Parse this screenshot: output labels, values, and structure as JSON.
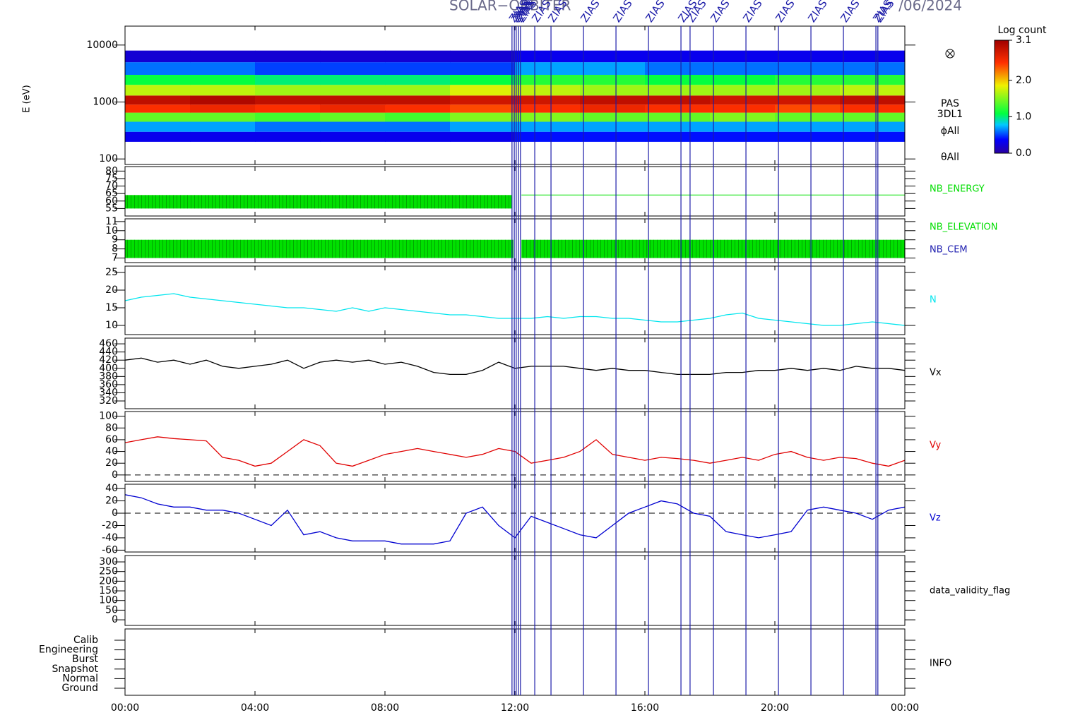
{
  "title": "SOLAR−ORBITER",
  "date": "/06/2024",
  "events": {
    "label": "ZIAS",
    "color": "#1c1ca8",
    "x": [
      11.91,
      11.98,
      12.04,
      12.11,
      12.17,
      12.61,
      13.11,
      14.11,
      15.11,
      16.11,
      17.11,
      17.39,
      18.11,
      19.11,
      20.11,
      21.11,
      22.11,
      23.11,
      23.17
    ]
  },
  "chart_data": [
    {
      "type": "heatmap",
      "y_label": "E (eV)",
      "log_y": true,
      "ylim": [
        80,
        21500
      ],
      "yticks": [
        100,
        1000,
        10000
      ],
      "labels": [
        "PAS",
        "3DL1",
        "ϕAll",
        "θAll"
      ],
      "x_edges": [
        0,
        2,
        4,
        6,
        8,
        10,
        12,
        14,
        16,
        18,
        20,
        22,
        24
      ],
      "y_edges": [
        200,
        300,
        450,
        650,
        900,
        1300,
        2000,
        3000,
        5000,
        8000
      ],
      "z": [
        [
          0.3,
          0.3,
          0.3,
          0.3,
          0.3,
          0.3,
          0.4,
          0.4,
          0.4,
          0.4,
          0.4,
          0.4
        ],
        [
          0.7,
          0.7,
          0.6,
          0.6,
          0.6,
          0.7,
          0.7,
          0.7,
          0.7,
          0.7,
          0.7,
          0.7
        ],
        [
          1.4,
          1.4,
          1.3,
          1.4,
          1.3,
          1.5,
          1.5,
          1.4,
          1.4,
          1.5,
          1.4,
          1.4
        ],
        [
          2.5,
          2.6,
          2.5,
          2.6,
          2.5,
          2.4,
          2.5,
          2.6,
          2.5,
          2.5,
          2.4,
          2.5
        ],
        [
          2.9,
          3.0,
          2.9,
          2.9,
          2.9,
          2.8,
          2.8,
          2.9,
          2.9,
          2.8,
          2.8,
          2.9
        ],
        [
          1.7,
          1.7,
          1.6,
          1.6,
          1.6,
          1.8,
          1.7,
          1.6,
          1.6,
          1.6,
          1.6,
          1.7
        ],
        [
          1.1,
          1.1,
          1.0,
          1.0,
          1.0,
          1.1,
          1.2,
          1.2,
          1.1,
          1.1,
          1.2,
          1.2
        ],
        [
          0.6,
          0.6,
          0.5,
          0.5,
          0.5,
          0.5,
          0.7,
          0.7,
          0.6,
          0.6,
          0.6,
          0.6
        ],
        [
          0.2,
          0.2,
          0.2,
          0.2,
          0.2,
          0.2,
          0.3,
          0.3,
          0.3,
          0.3,
          0.3,
          0.3
        ]
      ],
      "colorbar": {
        "title": "Log count",
        "lim": [
          0,
          3.1
        ],
        "ticks": [
          {
            "value": 0,
            "label": "0.0"
          },
          {
            "value": 1,
            "label": "1.0"
          },
          {
            "value": 2,
            "label": "2.0"
          },
          3.1
        ]
      }
    },
    {
      "type": "band",
      "ylim": [
        50,
        83
      ],
      "yticks": [
        55,
        60,
        65,
        70,
        75,
        80
      ],
      "labels": [
        {
          "text": "NB_ENERGY",
          "color": "#00dd00"
        }
      ],
      "color": "#00e000",
      "bands": [
        {
          "x": [
            0,
            11.9
          ],
          "y": [
            55,
            64
          ]
        }
      ],
      "levels": [
        {
          "x": [
            12.2,
            24
          ],
          "y": 64
        }
      ]
    },
    {
      "type": "band",
      "ylim": [
        6.5,
        11.3
      ],
      "yticks": [
        7,
        8,
        9,
        10,
        11
      ],
      "labels": [
        {
          "text": "NB_ELEVATION",
          "color": "#00dd00"
        },
        {
          "text": "NB_CEM",
          "color": "#2020b0"
        }
      ],
      "color": "#00e000",
      "bands": [
        {
          "x": [
            0,
            11.95
          ],
          "y": [
            7,
            9
          ]
        },
        {
          "x": [
            12.2,
            24
          ],
          "y": [
            7,
            9
          ]
        }
      ],
      "levels": []
    },
    {
      "type": "line",
      "ylim": [
        7.4,
        26.8
      ],
      "yticks": [
        10,
        15,
        20,
        25
      ],
      "x": [
        0,
        0.5,
        1,
        1.5,
        2,
        2.5,
        3,
        3.5,
        4,
        4.5,
        5,
        5.5,
        6,
        6.5,
        7,
        7.5,
        8,
        8.5,
        9,
        9.5,
        10,
        10.5,
        11,
        11.5,
        12,
        12.5,
        13,
        13.5,
        14,
        14.5,
        15,
        15.5,
        16,
        16.5,
        17,
        17.5,
        18,
        18.5,
        19,
        19.5,
        20,
        20.5,
        21,
        21.5,
        22,
        22.5,
        23,
        23.5,
        24
      ],
      "series": [
        {
          "name": "N",
          "color": "#00e5ee",
          "values": [
            17,
            18,
            18.5,
            19,
            18,
            17.5,
            17,
            16.5,
            16,
            15.5,
            15,
            15,
            14.5,
            14,
            15,
            14,
            15,
            14.5,
            14,
            13.5,
            13,
            13,
            12.5,
            12,
            12,
            12,
            12.5,
            12,
            12.5,
            12.5,
            12,
            12,
            11.5,
            11,
            11,
            11.5,
            12,
            13,
            13.5,
            12,
            11.5,
            11,
            10.5,
            10,
            10,
            10.5,
            11,
            10.5,
            10
          ]
        }
      ]
    },
    {
      "type": "line",
      "ylim": [
        301,
        474
      ],
      "yticks": [
        320,
        340,
        360,
        380,
        400,
        420,
        440,
        460
      ],
      "x": [
        0,
        0.5,
        1,
        1.5,
        2,
        2.5,
        3,
        3.5,
        4,
        4.5,
        5,
        5.5,
        6,
        6.5,
        7,
        7.5,
        8,
        8.5,
        9,
        9.5,
        10,
        10.5,
        11,
        11.5,
        12,
        12.5,
        13,
        13.5,
        14,
        14.5,
        15,
        15.5,
        16,
        16.5,
        17,
        17.5,
        18,
        18.5,
        19,
        19.5,
        20,
        20.5,
        21,
        21.5,
        22,
        22.5,
        23,
        23.5,
        24
      ],
      "series": [
        {
          "name": "Vx",
          "color": "#000000",
          "values": [
            420,
            425,
            415,
            420,
            410,
            420,
            405,
            400,
            405,
            410,
            420,
            400,
            415,
            420,
            415,
            420,
            410,
            415,
            405,
            390,
            385,
            385,
            395,
            415,
            400,
            405,
            405,
            405,
            400,
            395,
            400,
            395,
            395,
            390,
            385,
            385,
            385,
            390,
            390,
            395,
            395,
            400,
            395,
            400,
            395,
            405,
            400,
            400,
            395
          ]
        }
      ]
    },
    {
      "type": "line",
      "ylim": [
        -11,
        108
      ],
      "yticks": [
        0,
        20,
        40,
        60,
        80,
        100
      ],
      "reference": 0,
      "x": [
        0,
        0.5,
        1,
        1.5,
        2,
        2.5,
        3,
        3.5,
        4,
        4.5,
        5,
        5.5,
        6,
        6.5,
        7,
        7.5,
        8,
        8.5,
        9,
        9.5,
        10,
        10.5,
        11,
        11.5,
        12,
        12.5,
        13,
        13.5,
        14,
        14.5,
        15,
        15.5,
        16,
        16.5,
        17,
        17.5,
        18,
        18.5,
        19,
        19.5,
        20,
        20.5,
        21,
        21.5,
        22,
        22.5,
        23,
        23.5,
        24
      ],
      "series": [
        {
          "name": "Vy",
          "color": "#e00000",
          "values": [
            55,
            60,
            65,
            62,
            60,
            58,
            30,
            25,
            15,
            20,
            40,
            60,
            50,
            20,
            15,
            25,
            35,
            40,
            45,
            40,
            35,
            30,
            35,
            45,
            40,
            20,
            25,
            30,
            40,
            60,
            35,
            30,
            25,
            30,
            28,
            25,
            20,
            25,
            30,
            25,
            35,
            40,
            30,
            25,
            30,
            28,
            20,
            15,
            25
          ]
        }
      ]
    },
    {
      "type": "line",
      "ylim": [
        -63,
        47
      ],
      "yticks": [
        -60,
        -40,
        -20,
        0,
        20,
        40
      ],
      "reference": 0,
      "x": [
        0,
        0.5,
        1,
        1.5,
        2,
        2.5,
        3,
        3.5,
        4,
        4.5,
        5,
        5.5,
        6,
        6.5,
        7,
        7.5,
        8,
        8.5,
        9,
        9.5,
        10,
        10.5,
        11,
        11.5,
        12,
        12.5,
        13,
        13.5,
        14,
        14.5,
        15,
        15.5,
        16,
        16.5,
        17,
        17.5,
        18,
        18.5,
        19,
        19.5,
        20,
        20.5,
        21,
        21.5,
        22,
        22.5,
        23,
        23.5,
        24
      ],
      "series": [
        {
          "name": "Vz",
          "color": "#0000d0",
          "values": [
            30,
            25,
            15,
            10,
            10,
            5,
            5,
            0,
            -10,
            -20,
            5,
            -35,
            -30,
            -40,
            -45,
            -45,
            -45,
            -50,
            -50,
            -50,
            -45,
            0,
            10,
            -20,
            -40,
            -5,
            -15,
            -25,
            -35,
            -40,
            -20,
            0,
            10,
            20,
            15,
            0,
            -5,
            -30,
            -35,
            -40,
            -35,
            -30,
            5,
            10,
            5,
            0,
            -10,
            5,
            10
          ]
        }
      ]
    },
    {
      "type": "empty",
      "ylim": [
        -29,
        333
      ],
      "yticks": [
        0,
        50,
        100,
        150,
        200,
        250,
        300
      ],
      "labels": [
        {
          "text": "data_validity_flag",
          "color": "#000000"
        }
      ]
    },
    {
      "type": "category",
      "categories": [
        "Calib",
        "Engineering",
        "Burst",
        "Snapshot",
        "Normal",
        "Ground"
      ],
      "labels": [
        {
          "text": "INFO",
          "color": "#000000"
        }
      ],
      "xlim": [
        0,
        24
      ],
      "xticks": [
        {
          "value": 0,
          "label": "00:00"
        },
        {
          "value": 4,
          "label": "04:00"
        },
        {
          "value": 8,
          "label": "08:00"
        },
        {
          "value": 12,
          "label": "12:00"
        },
        {
          "value": 16,
          "label": "16:00"
        },
        {
          "value": 20,
          "label": "20:00"
        },
        {
          "value": 24,
          "label": "00:00"
        }
      ]
    }
  ]
}
